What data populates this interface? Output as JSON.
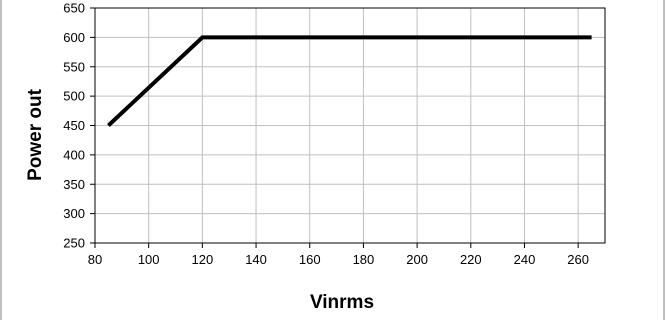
{
  "chart_data": {
    "type": "line",
    "title": "",
    "xlabel": "Vinrms",
    "ylabel": "Power out",
    "xlim": [
      80,
      270
    ],
    "ylim": [
      250,
      650
    ],
    "xticks": [
      80,
      100,
      120,
      140,
      160,
      180,
      200,
      220,
      240,
      260
    ],
    "yticks": [
      250,
      300,
      350,
      400,
      450,
      500,
      550,
      600,
      650
    ],
    "grid": true,
    "series": [
      {
        "x": [
          85,
          120,
          265
        ],
        "y": [
          450,
          600,
          600
        ],
        "color": "#000000"
      }
    ],
    "colors": {
      "grid": "#c0c0c0",
      "axis": "#000000",
      "frame": "#808080"
    }
  }
}
